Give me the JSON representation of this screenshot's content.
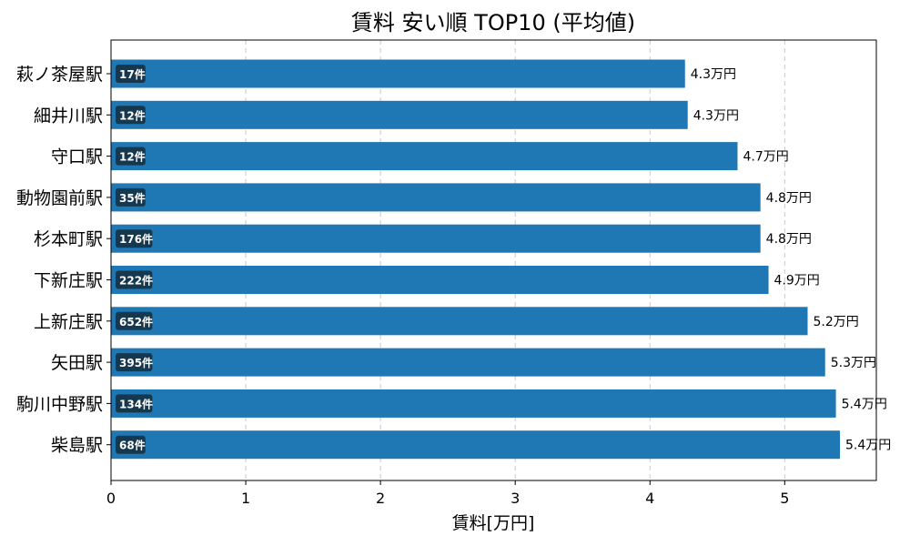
{
  "chart_data": {
    "type": "bar",
    "orientation": "horizontal",
    "title": "賃料 安い順 TOP10 (平均値)",
    "xlabel": "賃料[万円]",
    "ylabel": "",
    "xlim": [
      0,
      5.68
    ],
    "xticks": [
      "0",
      "1",
      "2",
      "3",
      "4",
      "5"
    ],
    "grid": "x-dashed",
    "bar_color": "#1f77b4",
    "count_badge_color": "#16384f",
    "value_suffix": "万円",
    "categories": [
      "萩ノ茶屋駅",
      "細井川駅",
      "守口駅",
      "動物園前駅",
      "杉本町駅",
      "下新庄駅",
      "上新庄駅",
      "矢田駅",
      "駒川中野駅",
      "柴島駅"
    ],
    "values": [
      4.26,
      4.28,
      4.65,
      4.82,
      4.82,
      4.88,
      5.17,
      5.3,
      5.38,
      5.41
    ],
    "value_labels": [
      "4.3万円",
      "4.3万円",
      "4.7万円",
      "4.8万円",
      "4.8万円",
      "4.9万円",
      "5.2万円",
      "5.3万円",
      "5.4万円",
      "5.4万円"
    ],
    "counts": [
      "17件",
      "12件",
      "12件",
      "35件",
      "176件",
      "222件",
      "652件",
      "395件",
      "134件",
      "68件"
    ]
  }
}
